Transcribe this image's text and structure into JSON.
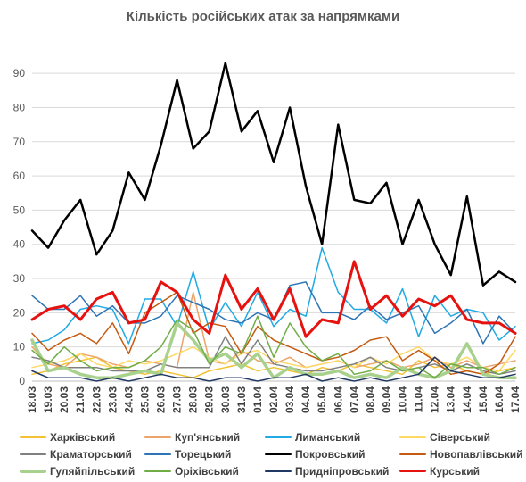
{
  "chart_data": {
    "type": "line",
    "title": "Кількість російських атак за напрямками",
    "xlabel": "",
    "ylabel": "",
    "ylim": [
      0,
      95
    ],
    "yticks": [
      0,
      10,
      20,
      30,
      40,
      50,
      60,
      70,
      80,
      90
    ],
    "grid": true,
    "legend_position": "bottom",
    "x": [
      "18.03",
      "19.03",
      "20.03",
      "21.03",
      "22.03",
      "23.03",
      "24.03",
      "25.03",
      "26.03",
      "27.03",
      "28.03",
      "29.03",
      "30.03",
      "31.03",
      "01.04",
      "02.04",
      "03.04",
      "04.04",
      "05.04",
      "06.04",
      "07.04",
      "08.04",
      "09.04",
      "10.04",
      "11.04",
      "12.04",
      "13.04",
      "14.04",
      "15.04",
      "16.04",
      "17.04"
    ],
    "series": [
      {
        "name": "Харківський",
        "color": "#f2c233",
        "width": 1.5,
        "values": [
          2,
          3,
          5,
          6,
          7,
          4,
          3,
          2,
          3,
          2,
          1,
          3,
          4,
          5,
          3,
          4,
          3,
          2,
          4,
          3,
          5,
          4,
          3,
          2,
          6,
          4,
          5,
          3,
          2,
          3,
          4
        ]
      },
      {
        "name": "Куп'янський",
        "color": "#eba46a",
        "width": 1.5,
        "values": [
          10,
          5,
          4,
          8,
          7,
          5,
          4,
          6,
          5,
          4,
          26,
          6,
          5,
          9,
          6,
          5,
          7,
          4,
          5,
          6,
          4,
          5,
          6,
          4,
          5,
          7,
          4,
          6,
          4,
          5,
          6
        ]
      },
      {
        "name": "Лиманський",
        "color": "#21aae4",
        "width": 1.5,
        "values": [
          11,
          12,
          15,
          21,
          22,
          21,
          11,
          24,
          24,
          16,
          32,
          15,
          23,
          16,
          26,
          16,
          21,
          19,
          39,
          26,
          21,
          21,
          17,
          27,
          13,
          25,
          19,
          21,
          20,
          12,
          16
        ]
      },
      {
        "name": "Сіверський",
        "color": "#ffd966",
        "width": 1.5,
        "values": [
          4,
          5,
          6,
          8,
          5,
          4,
          6,
          5,
          6,
          8,
          10,
          7,
          5,
          8,
          9,
          6,
          5,
          4,
          5,
          6,
          4,
          7,
          5,
          8,
          10,
          6,
          5,
          7,
          4,
          3,
          9
        ]
      },
      {
        "name": "Краматорський",
        "color": "#808080",
        "width": 1.5,
        "values": [
          7,
          6,
          4,
          4,
          4,
          3,
          3,
          3,
          5,
          4,
          4,
          4,
          13,
          5,
          12,
          5,
          4,
          3,
          3,
          4,
          5,
          7,
          4,
          3,
          4,
          5,
          3,
          5,
          3,
          2,
          3
        ]
      },
      {
        "name": "Торецький",
        "color": "#2e75b6",
        "width": 1.5,
        "values": [
          25,
          21,
          21,
          25,
          19,
          22,
          17,
          17,
          19,
          25,
          23,
          21,
          18,
          17,
          20,
          18,
          28,
          29,
          20,
          20,
          18,
          22,
          18,
          20,
          22,
          14,
          17,
          21,
          11,
          19,
          14
        ]
      },
      {
        "name": "Покровський",
        "color": "#000000",
        "width": 2.5,
        "values": [
          44,
          39,
          47,
          53,
          37,
          44,
          61,
          53,
          69,
          88,
          68,
          73,
          93,
          73,
          79,
          64,
          80,
          57,
          40,
          75,
          53,
          52,
          58,
          40,
          53,
          40,
          31,
          54,
          28,
          32,
          29
        ]
      },
      {
        "name": "Новопавлівський",
        "color": "#c55a11",
        "width": 1.5,
        "values": [
          14,
          9,
          12,
          14,
          11,
          17,
          8,
          20,
          23,
          26,
          14,
          17,
          16,
          8,
          16,
          12,
          10,
          8,
          6,
          7,
          9,
          12,
          13,
          6,
          9,
          6,
          2,
          3,
          2,
          5,
          13
        ]
      },
      {
        "name": "Гуляйпільський",
        "color": "#a9d18e",
        "width": 3.5,
        "values": [
          12,
          3,
          4,
          2,
          1,
          1,
          2,
          3,
          2,
          17,
          12,
          6,
          8,
          4,
          8,
          1,
          4,
          2,
          2,
          3,
          1,
          2,
          1,
          4,
          2,
          1,
          3,
          11,
          2,
          1,
          1
        ]
      },
      {
        "name": "Оріхівський",
        "color": "#70ad47",
        "width": 1.5,
        "values": [
          9,
          5,
          10,
          6,
          3,
          4,
          4,
          6,
          10,
          18,
          15,
          5,
          10,
          8,
          19,
          7,
          17,
          10,
          6,
          8,
          2,
          3,
          6,
          3,
          4,
          1,
          5,
          4,
          4,
          2,
          4
        ]
      },
      {
        "name": "Придніпровський",
        "color": "#203864",
        "width": 1.5,
        "values": [
          3,
          1,
          1,
          1,
          0,
          1,
          0,
          1,
          2,
          1,
          1,
          0,
          1,
          1,
          0,
          1,
          1,
          2,
          0,
          1,
          0,
          1,
          0,
          1,
          2,
          7,
          3,
          2,
          1,
          1,
          2
        ]
      },
      {
        "name": "Курський",
        "color": "#e6120f",
        "width": 3,
        "values": [
          18,
          21,
          22,
          18,
          24,
          26,
          17,
          18,
          29,
          26,
          18,
          14,
          31,
          21,
          27,
          18,
          27,
          13,
          18,
          17,
          35,
          21,
          25,
          19,
          24,
          22,
          25,
          18,
          17,
          17,
          14
        ]
      }
    ]
  }
}
